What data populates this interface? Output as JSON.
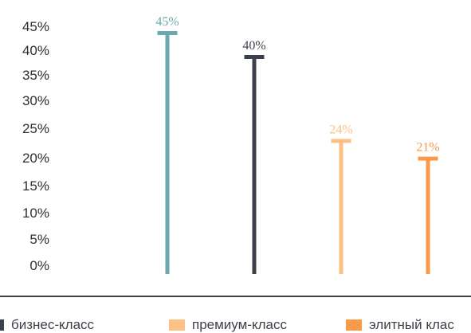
{
  "chart_data": {
    "type": "bar",
    "categories": [
      "бизнес-класс",
      "",
      "премиум-класс",
      "элитный клас"
    ],
    "series": [
      {
        "name": "",
        "values": [
          45,
          40,
          24,
          21
        ],
        "labels": [
          "45%",
          "40%",
          "24%",
          "21%"
        ]
      }
    ],
    "colors": [
      "#6aa9ad",
      "#3d414c",
      "#fcc283",
      "#f99a48"
    ],
    "ylim": [
      0,
      45
    ],
    "yticks": [
      {
        "value": 45,
        "label": "45%"
      },
      {
        "value": 40,
        "label": "40%"
      },
      {
        "value": 35,
        "label": "35%"
      },
      {
        "value": 30,
        "label": "30%"
      },
      {
        "value": 25,
        "label": "25%"
      },
      {
        "value": 20,
        "label": "20%"
      },
      {
        "value": 15,
        "label": "15%"
      },
      {
        "value": 10,
        "label": "10%"
      },
      {
        "value": 5,
        "label": "5%"
      },
      {
        "value": 0,
        "label": "0%"
      }
    ],
    "legend": [
      {
        "label": "бизнес-класс",
        "color": "#3d414c"
      },
      {
        "label": "премиум-класс",
        "color": "#fcc283"
      },
      {
        "label": "элитный клас",
        "color": "#f99a48"
      }
    ],
    "legend_position": "bottom",
    "grid": false
  }
}
